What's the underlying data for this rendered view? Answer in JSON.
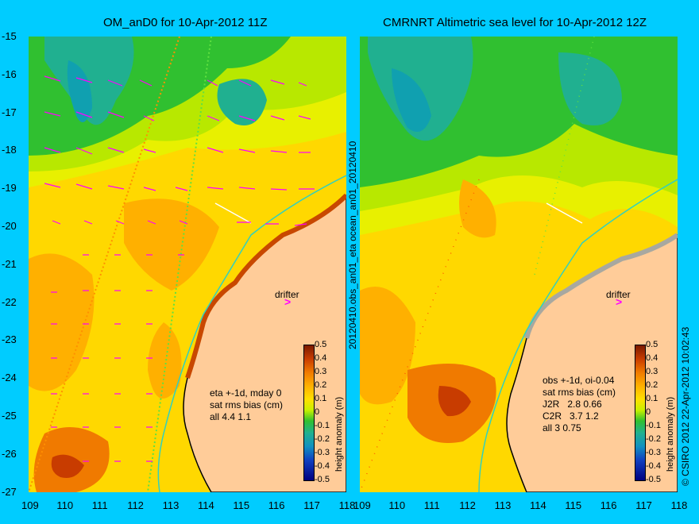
{
  "titles": {
    "left": "OM_anD0 for 10-Apr-2012 11Z",
    "right": "CMRNRT Altimetric sea level  for 10-Apr-2012 12Z"
  },
  "yticks": [
    "-15",
    "-16",
    "-17",
    "-18",
    "-19",
    "-20",
    "-21",
    "-22",
    "-23",
    "-24",
    "-25",
    "-26",
    "-27"
  ],
  "xticks_left": [
    "109",
    "110",
    "111",
    "112",
    "113",
    "114",
    "115",
    "116",
    "117",
    "118"
  ],
  "xticks_right": [
    "109",
    "110",
    "111",
    "112",
    "113",
    "114",
    "115",
    "116",
    "117",
    "118"
  ],
  "sidebar_left": "20120410.obs_an01_eta   ocean_an01_20120410",
  "sidebar_right": "© CSIRO 2012   22-Apr-2012 10:02:43",
  "info_left": {
    "line1": "eta +-1d, mday 0",
    "line2": "sat rms bias (cm)",
    "line3": "all 4.4 1.1"
  },
  "info_right": {
    "line1": "obs +-1d, oi-0.04",
    "line2": "sat rms bias (cm)",
    "line3": "J2R   2.8 0.66",
    "line4": "C2R   3.7 1.2",
    "line5": "all 3 0.75"
  },
  "drifter_label": "drifter",
  "colorbar": {
    "title": "height anomaly (m)",
    "ticks": [
      "0.5",
      "0.4",
      "0.3",
      "0.2",
      "0.1",
      "0",
      "-0.1",
      "-0.2",
      "-0.3",
      "-0.4",
      "-0.5"
    ]
  },
  "colors": {
    "background": "#00ccff",
    "land": "#ffcc99",
    "coast": "#000000",
    "arrows": "#ff00ff"
  }
}
